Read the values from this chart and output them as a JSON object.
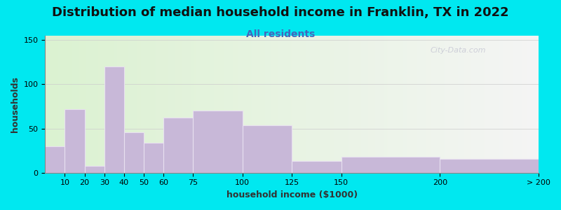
{
  "title": "Distribution of median household income in Franklin, TX in 2022",
  "subtitle": "All residents",
  "xlabel": "household income ($1000)",
  "ylabel": "households",
  "bin_edges": [
    0,
    10,
    20,
    30,
    40,
    50,
    60,
    75,
    100,
    125,
    150,
    200,
    250
  ],
  "bin_labels": [
    "10",
    "20",
    "30",
    "40",
    "50",
    "60",
    "75",
    "100",
    "125",
    "150",
    "200",
    "> 200"
  ],
  "bar_values": [
    30,
    72,
    8,
    120,
    46,
    34,
    62,
    70,
    54,
    13,
    18,
    16
  ],
  "bar_color": "#c8b8d8",
  "bar_edge_color": "#e8e0f0",
  "ylim": [
    0,
    155
  ],
  "yticks": [
    0,
    50,
    100,
    150
  ],
  "background_outer": "#00e8f0",
  "background_inner_left": "#e0f0d8",
  "background_inner_right": "#f5f5f5",
  "title_fontsize": 13,
  "subtitle_fontsize": 10,
  "subtitle_color": "#4466bb",
  "axis_label_fontsize": 9,
  "tick_fontsize": 8,
  "watermark": "City-Data.com",
  "grid_color": "#cccccc"
}
